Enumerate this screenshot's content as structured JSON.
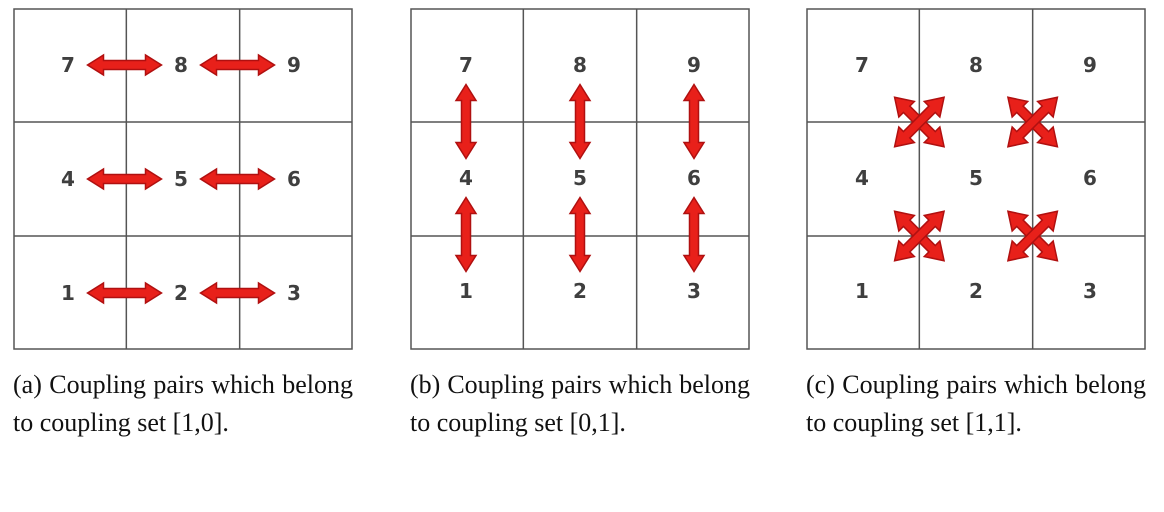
{
  "panels": [
    {
      "id": "a",
      "caption": "(a) Coupling pairs which belong to coupling set [1,0].",
      "cells": [
        "7",
        "8",
        "9",
        "4",
        "5",
        "6",
        "1",
        "2",
        "3"
      ],
      "arrow_type": "horizontal"
    },
    {
      "id": "b",
      "caption": "(b) Coupling pairs which belong to coupling set [0,1].",
      "cells": [
        "7",
        "8",
        "9",
        "4",
        "5",
        "6",
        "1",
        "2",
        "3"
      ],
      "arrow_type": "vertical"
    },
    {
      "id": "c",
      "caption": "(c) Coupling pairs which belong to coupling set [1,1].",
      "cells": [
        "7",
        "8",
        "9",
        "4",
        "5",
        "6",
        "1",
        "2",
        "3"
      ],
      "arrow_type": "diagonal"
    }
  ],
  "colors": {
    "arrow_fill": "#e8201a",
    "arrow_stroke": "#b01010",
    "grid": "#555555",
    "text": "#3f3f3f"
  }
}
